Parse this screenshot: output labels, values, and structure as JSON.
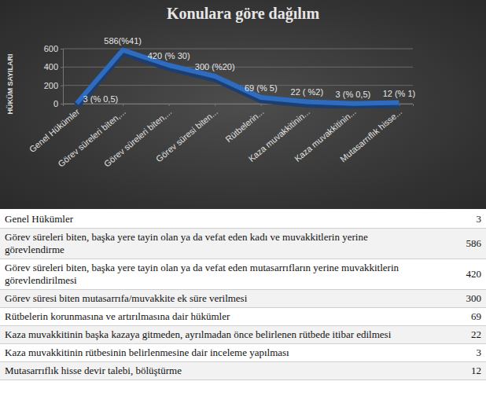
{
  "chart_data": {
    "type": "line",
    "title": "Konulara göre dağılım",
    "y_label": "HÜKÜM SAYILARI",
    "categories": [
      "Genel Hükümler",
      "Görev süreleri biten,...",
      "Görev süreleri biten,...",
      "Görev süresi biten...",
      "Rütbelerin...",
      "Kaza muvakkitinin...",
      "Kaza muvakkitinin...",
      "Mutasarrıflık hisse..."
    ],
    "values": [
      3,
      586,
      420,
      300,
      69,
      22,
      3,
      12
    ],
    "value_labels": [
      "3 (% 0,5)",
      "586(%41)",
      "420 (% 30)",
      "300 (%20)",
      "69 (% 5)",
      "22 ( %2)",
      "3 (% 0,5)",
      "12 (% 1)"
    ],
    "data_labels": true,
    "color": "#2f6cc0",
    "ylim": [
      0,
      600
    ],
    "yticks": [
      0,
      200,
      400,
      600
    ],
    "grid": true
  },
  "table": {
    "rows": [
      [
        "Genel Hükümler",
        3
      ],
      [
        "Görev süreleri biten, başka yere tayin olan ya da vefat eden kadı ve muvakkitlerin yerine görevlendirme",
        586
      ],
      [
        "Görev süreleri biten, başka yere tayin olan ya da vefat eden mutasarrıfların yerine muvakkitlerin görevlendirilmesi",
        420
      ],
      [
        "Görev süresi biten mutasarrıfa/muvakkite ek süre verilmesi",
        300
      ],
      [
        "Rütbelerin korunmasına ve artırılmasına dair hükümler",
        69
      ],
      [
        "Kaza muvakkitinin başka kazaya gitmeden, ayrılmadan önce belirlenen rütbede itibar edilmesi",
        22
      ],
      [
        "Kaza muvakkitinin rütbesinin belirlenmesine dair inceleme yapılması",
        3
      ],
      [
        "Mutasarrıflık hisse devir talebi, bölüştürme",
        12
      ]
    ]
  }
}
